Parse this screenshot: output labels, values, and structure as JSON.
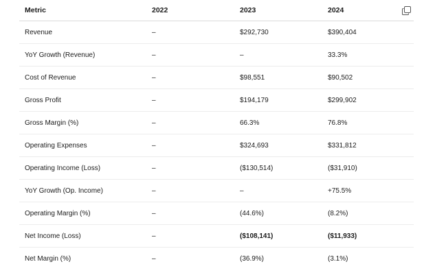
{
  "table": {
    "headers": [
      "Metric",
      "2022",
      "2023",
      "2024"
    ],
    "rows": [
      {
        "metric": "Revenue",
        "y2022": "–",
        "y2023": "$292,730",
        "y2024": "$390,404"
      },
      {
        "metric": "YoY Growth (Revenue)",
        "y2022": "–",
        "y2023": "–",
        "y2024": "33.3%"
      },
      {
        "metric": "Cost of Revenue",
        "y2022": "–",
        "y2023": "$98,551",
        "y2024": "$90,502"
      },
      {
        "metric": "Gross Profit",
        "y2022": "–",
        "y2023": "$194,179",
        "y2024": "$299,902"
      },
      {
        "metric": "Gross Margin (%)",
        "y2022": "–",
        "y2023": "66.3%",
        "y2024": "76.8%"
      },
      {
        "metric": "Operating Expenses",
        "y2022": "–",
        "y2023": "$324,693",
        "y2024": "$331,812"
      },
      {
        "metric": "Operating Income (Loss)",
        "y2022": "–",
        "y2023": "($130,514)",
        "y2024": "($31,910)"
      },
      {
        "metric": "YoY Growth (Op. Income)",
        "y2022": "–",
        "y2023": "–",
        "y2024": "+75.5%"
      },
      {
        "metric": "Operating Margin (%)",
        "y2022": "–",
        "y2023": "(44.6%)",
        "y2024": "(8.2%)"
      },
      {
        "metric": "Net Income (Loss)",
        "y2022": "–",
        "y2023": "($108,141)",
        "y2024": "($11,933)"
      },
      {
        "metric": "Net Margin (%)",
        "y2022": "–",
        "y2023": "(36.9%)",
        "y2024": "(3.1%)"
      }
    ]
  },
  "icons": {
    "copy": "copy-icon"
  }
}
